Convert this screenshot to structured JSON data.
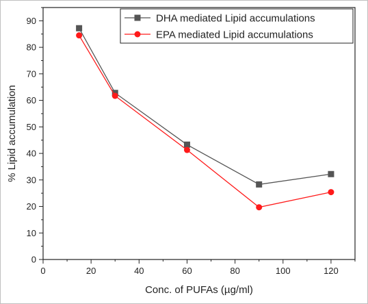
{
  "chart_data": {
    "type": "line",
    "xlabel": "Conc. of PUFAs (µg/ml)",
    "ylabel": "% Lipid accumulation",
    "xlim": [
      0,
      130
    ],
    "ylim": [
      0,
      95
    ],
    "xticks": [
      0,
      20,
      40,
      60,
      80,
      100,
      120
    ],
    "yticks": [
      0,
      10,
      20,
      30,
      40,
      50,
      60,
      70,
      80,
      90
    ],
    "x": [
      15,
      30,
      60,
      90,
      120
    ],
    "series": [
      {
        "name": "DHA mediated Lipid accumulations",
        "values": [
          87.2,
          62.8,
          43.3,
          28.3,
          32.2
        ],
        "color": "#555555",
        "marker": "square"
      },
      {
        "name": "EPA mediated Lipid accumulations",
        "values": [
          84.5,
          61.7,
          41.3,
          19.7,
          25.4
        ],
        "color": "#ff1a1a",
        "marker": "circle"
      }
    ],
    "legend_position": "top-right",
    "grid": false
  }
}
